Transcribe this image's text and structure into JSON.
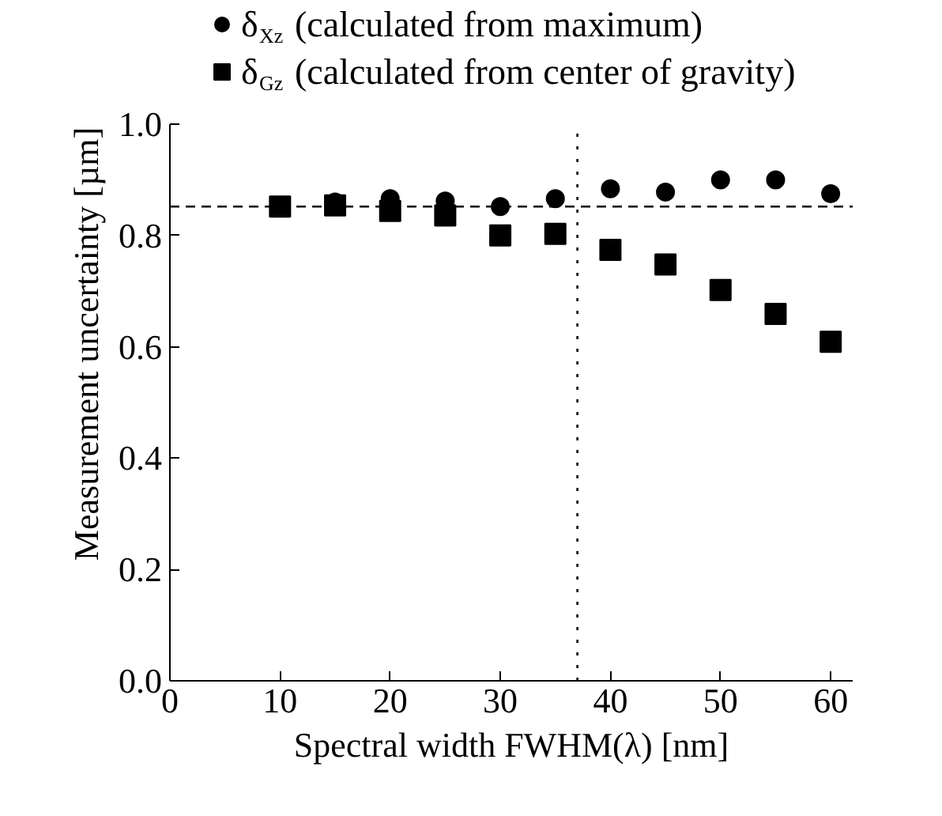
{
  "chart_data": {
    "type": "scatter",
    "xlabel": "Spectral width FWHM(λ) [nm]",
    "ylabel": "Measurement uncertainty [µm]",
    "x": [
      10,
      15,
      20,
      25,
      30,
      35,
      40,
      45,
      50,
      55,
      60
    ],
    "series": [
      {
        "name": "δ$_{Xz}$ (calculated from maximum)",
        "color": "#000000",
        "marker": "circle",
        "values": [
          null,
          0.86,
          0.866,
          0.862,
          0.852,
          0.866,
          0.884,
          0.878,
          0.9,
          0.9,
          0.875
        ]
      },
      {
        "name": "δ$_{Gz}$ (calculated from center of gravity)",
        "color": "#000000",
        "marker": "square",
        "values": [
          0.852,
          0.854,
          0.844,
          0.836,
          0.8,
          0.803,
          0.774,
          0.748,
          0.702,
          0.659,
          0.609
        ]
      }
    ],
    "xlim": [
      0,
      62
    ],
    "ylim": [
      0,
      1.0
    ],
    "xticks": [
      0,
      10,
      20,
      30,
      40,
      50,
      60
    ],
    "yticks": [
      {
        "value": 0,
        "label": "0.0"
      },
      {
        "value": 0.2,
        "label": "0.2"
      },
      {
        "value": 0.4,
        "label": "0.4"
      },
      {
        "value": 0.6,
        "label": "0.6"
      },
      {
        "value": 0.8,
        "label": "0.8"
      },
      {
        "value": 1.0,
        "label": "1.0"
      }
    ],
    "ref_lines": [
      {
        "axis": "y",
        "value": 0.852,
        "line_style": "dashed"
      },
      {
        "axis": "x",
        "value": 37,
        "line_style": "dotted"
      }
    ],
    "legend": "top",
    "grid": false
  }
}
